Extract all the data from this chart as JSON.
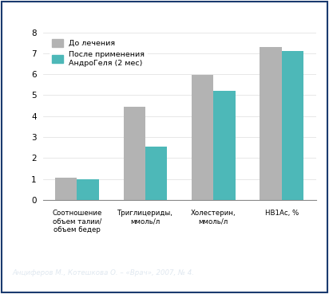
{
  "categories": [
    "Соотношение\nобъем талии/\nобъем бедер",
    "Триглицериды,\nммоль/л",
    "Холестерин,\nммоль/л",
    "НВ1Ас, %"
  ],
  "before": [
    1.08,
    4.45,
    5.95,
    7.3
  ],
  "after": [
    1.0,
    2.55,
    5.2,
    7.1
  ],
  "bar_color_before": "#b3b3b3",
  "bar_color_after": "#4db8b8",
  "ylim": [
    0,
    8
  ],
  "yticks": [
    0,
    1,
    2,
    3,
    4,
    5,
    6,
    7,
    8
  ],
  "legend_before": "До лечения",
  "legend_after": "После применения\nАндроГеля (2 мес)",
  "footer_text": "Анциферов М., Котешкова О. – «Врач», 2007, № 4.",
  "footer_bg": "#1a4f82",
  "footer_text_color": "#e0e8f0",
  "outer_bg": "#ffffff",
  "inner_bg": "#ffffff",
  "border_color": "#1a3a6e",
  "bar_width": 0.32
}
